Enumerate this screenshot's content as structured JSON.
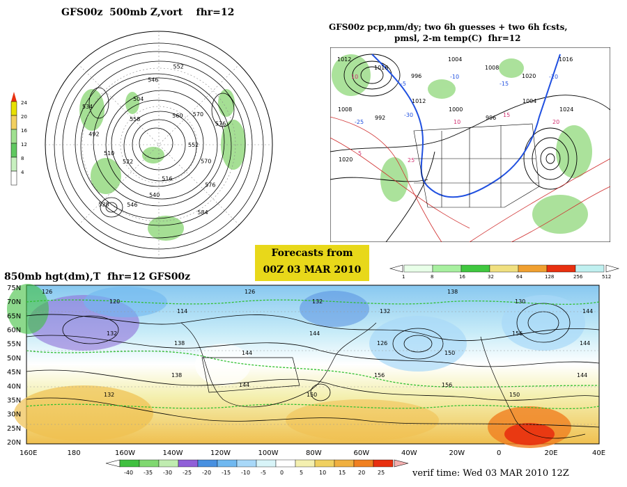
{
  "panel_500mb": {
    "title": "GFS00z  500mb Z,vort    fhr=12",
    "legend_ticks": [
      "24",
      "20",
      "16",
      "12",
      "8",
      "4"
    ],
    "legend_colors": [
      "#e8e000",
      "#f2d060",
      "#a0e090",
      "#60c860",
      "#c8f0c0",
      "#ffffff"
    ],
    "contour_labels": [
      "552",
      "570",
      "576",
      "584",
      "516",
      "540",
      "546",
      "528",
      "522",
      "510",
      "492",
      "534",
      "558",
      "504",
      "546",
      "552",
      "560",
      "570",
      "576"
    ]
  },
  "panel_precip": {
    "title_line1": "GFS00z pcp,mm/dy; two 6h guesses + two 6h fcsts,",
    "title_line2": "pmsl, 2-m temp(C)  fhr=12",
    "legend_ticks": [
      "1",
      "8",
      "16",
      "32",
      "64",
      "128",
      "256",
      "512"
    ],
    "legend_colors": [
      "#e8ffe8",
      "#a8f0a0",
      "#40c840",
      "#f0e080",
      "#f0a030",
      "#e83010",
      "#c0f0f0"
    ],
    "pressure_labels": [
      "1012",
      "1016",
      "996",
      "1004",
      "1008",
      "1020",
      "1016",
      "1008",
      "992",
      "1012",
      "1000",
      "996",
      "1004",
      "1024",
      "1020"
    ],
    "temp_labels": [
      "10",
      "-5",
      "-10",
      "-15",
      "-20",
      "-25",
      "-30",
      "10",
      "15",
      "20",
      "5",
      "25"
    ]
  },
  "forecast_box": {
    "line1": "Forecasts from",
    "line2": "00Z 03 MAR 2010"
  },
  "panel_850mb": {
    "title": "850mb hgt(dm),T  fhr=12 GFS00z",
    "lat_labels": [
      "75N",
      "70N",
      "65N",
      "60N",
      "55N",
      "50N",
      "45N",
      "40N",
      "35N",
      "30N",
      "25N",
      "20N"
    ],
    "lon_labels": [
      "160E",
      "180",
      "160W",
      "140W",
      "120W",
      "100W",
      "80W",
      "60W",
      "40W",
      "20W",
      "0",
      "20E",
      "40E"
    ],
    "height_labels": [
      "126",
      "120",
      "114",
      "126",
      "132",
      "132",
      "138",
      "130",
      "144",
      "132",
      "138",
      "144",
      "144",
      "126",
      "150",
      "156",
      "144",
      "132",
      "138",
      "144",
      "150",
      "156",
      "156",
      "150",
      "144"
    ],
    "legend_ticks": [
      "-40",
      "-35",
      "-30",
      "-25",
      "-20",
      "-15",
      "-10",
      "-5",
      "0",
      "5",
      "10",
      "15",
      "20",
      "25"
    ],
    "legend_colors": [
      "#40c040",
      "#80d870",
      "#c0ecb0",
      "#9060d8",
      "#4890e0",
      "#70b8f0",
      "#a8d8f8",
      "#d8f4f8",
      "#ffffff",
      "#f4f0b0",
      "#f0d060",
      "#f0b040",
      "#f08020",
      "#e83010"
    ]
  },
  "verif_time": "verif time: Wed 03 MAR 2010 12Z"
}
